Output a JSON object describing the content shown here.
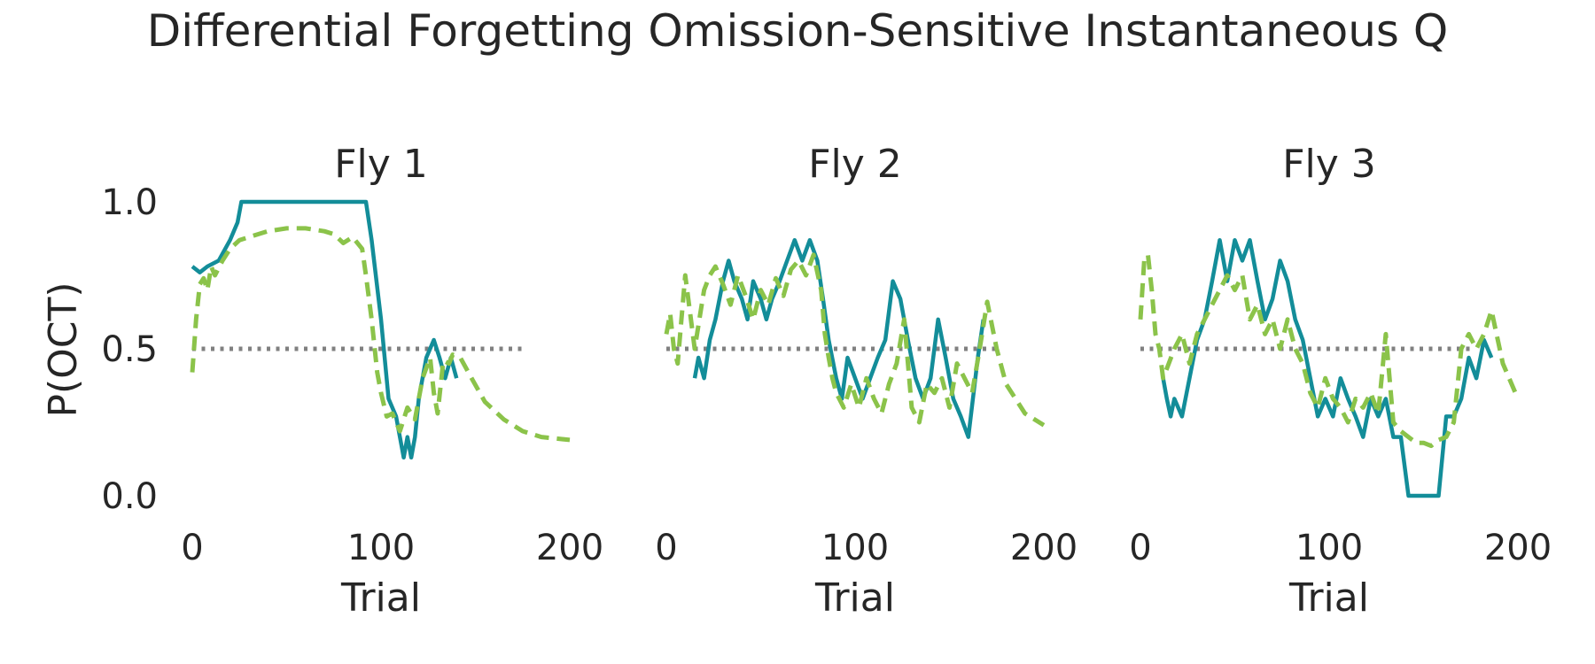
{
  "figure": {
    "suptitle": "Differential Forgetting Omission-Sensitive Instantaneous Q",
    "ylabel": "P(OCT)"
  },
  "colors": {
    "observed": "#138d99",
    "model": "#8bc34a",
    "chance": "#808080",
    "text": "#262626"
  },
  "chart_data": [
    {
      "type": "line",
      "title": "Fly 1",
      "xlabel": "Trial",
      "ylabel": "P(OCT)",
      "xlim": [
        0,
        200
      ],
      "ylim": [
        0,
        1
      ],
      "xticks": [
        "0",
        "100",
        "200"
      ],
      "yticks": [
        "0.0",
        "0.5",
        "1.0"
      ],
      "grid": false,
      "legend": "none",
      "reference_line": {
        "y": 0.5,
        "style": "dotted"
      },
      "series": [
        {
          "style": "solid",
          "x": [
            0,
            4,
            8,
            14,
            20,
            24,
            26,
            92,
            95,
            100,
            104,
            108,
            110,
            112,
            114,
            116,
            118,
            120,
            124,
            128,
            131,
            134,
            137,
            140
          ],
          "y": [
            0.78,
            0.76,
            0.78,
            0.8,
            0.87,
            0.93,
            1.0,
            1.0,
            0.87,
            0.6,
            0.33,
            0.27,
            0.2,
            0.13,
            0.2,
            0.13,
            0.2,
            0.33,
            0.47,
            0.53,
            0.47,
            0.4,
            0.47,
            0.4
          ]
        },
        {
          "style": "dashed",
          "x": [
            0,
            2,
            4,
            6,
            8,
            10,
            12,
            16,
            20,
            25,
            30,
            40,
            50,
            60,
            70,
            75,
            80,
            85,
            90,
            92,
            95,
            98,
            100,
            103,
            106,
            110,
            114,
            118,
            122,
            126,
            128,
            130,
            133,
            136,
            138,
            142,
            148,
            155,
            165,
            175,
            185,
            200
          ],
          "y": [
            0.42,
            0.6,
            0.72,
            0.74,
            0.7,
            0.78,
            0.75,
            0.8,
            0.84,
            0.87,
            0.88,
            0.9,
            0.91,
            0.91,
            0.9,
            0.89,
            0.86,
            0.88,
            0.84,
            0.75,
            0.6,
            0.42,
            0.35,
            0.27,
            0.28,
            0.22,
            0.3,
            0.26,
            0.4,
            0.47,
            0.35,
            0.28,
            0.46,
            0.45,
            0.48,
            0.47,
            0.4,
            0.32,
            0.26,
            0.22,
            0.2,
            0.19
          ]
        }
      ]
    },
    {
      "type": "line",
      "title": "Fly 2",
      "xlabel": "Trial",
      "xlim": [
        0,
        200
      ],
      "ylim": [
        0,
        1
      ],
      "xticks": [
        "0",
        "100",
        "200"
      ],
      "grid": false,
      "legend": "none",
      "reference_line": {
        "y": 0.5,
        "style": "dotted"
      },
      "series": [
        {
          "style": "solid",
          "x": [
            15,
            17,
            20,
            23,
            26,
            30,
            33,
            36,
            40,
            43,
            46,
            50,
            53,
            56,
            60,
            64,
            68,
            72,
            76,
            80,
            83,
            86,
            90,
            93,
            96,
            100,
            104,
            108,
            112,
            116,
            120,
            124,
            128,
            132,
            136,
            140,
            144,
            148,
            152,
            156,
            160,
            165,
            168
          ],
          "y": [
            0.4,
            0.47,
            0.4,
            0.53,
            0.6,
            0.73,
            0.8,
            0.73,
            0.67,
            0.6,
            0.73,
            0.67,
            0.6,
            0.67,
            0.73,
            0.8,
            0.87,
            0.8,
            0.87,
            0.8,
            0.67,
            0.53,
            0.4,
            0.33,
            0.47,
            0.4,
            0.33,
            0.4,
            0.47,
            0.53,
            0.73,
            0.67,
            0.53,
            0.4,
            0.33,
            0.4,
            0.6,
            0.47,
            0.33,
            0.27,
            0.2,
            0.47,
            0.6
          ]
        },
        {
          "style": "dashed",
          "x": [
            0,
            2,
            4,
            6,
            8,
            10,
            12,
            15,
            18,
            20,
            23,
            26,
            30,
            34,
            38,
            42,
            46,
            50,
            54,
            58,
            62,
            66,
            70,
            74,
            78,
            82,
            84,
            86,
            88,
            90,
            94,
            98,
            102,
            106,
            110,
            114,
            118,
            122,
            126,
            130,
            134,
            138,
            142,
            146,
            150,
            154,
            158,
            162,
            166,
            170,
            175,
            180,
            190,
            200
          ],
          "y": [
            0.55,
            0.62,
            0.5,
            0.45,
            0.6,
            0.75,
            0.65,
            0.5,
            0.62,
            0.7,
            0.75,
            0.78,
            0.72,
            0.65,
            0.75,
            0.68,
            0.6,
            0.7,
            0.65,
            0.74,
            0.68,
            0.77,
            0.8,
            0.75,
            0.82,
            0.7,
            0.55,
            0.47,
            0.4,
            0.35,
            0.3,
            0.38,
            0.3,
            0.4,
            0.33,
            0.28,
            0.38,
            0.45,
            0.6,
            0.3,
            0.25,
            0.38,
            0.35,
            0.4,
            0.3,
            0.45,
            0.4,
            0.35,
            0.5,
            0.66,
            0.5,
            0.38,
            0.28,
            0.24
          ]
        }
      ]
    },
    {
      "type": "line",
      "title": "Fly 3",
      "xlabel": "Trial",
      "xlim": [
        0,
        200
      ],
      "ylim": [
        0,
        1
      ],
      "xticks": [
        "0",
        "100",
        "200"
      ],
      "grid": false,
      "legend": "none",
      "reference_line": {
        "y": 0.5,
        "style": "dotted"
      },
      "series": [
        {
          "style": "solid",
          "x": [
            12,
            14,
            16,
            18,
            22,
            26,
            30,
            34,
            38,
            42,
            46,
            50,
            54,
            58,
            62,
            66,
            70,
            74,
            78,
            82,
            86,
            90,
            94,
            98,
            102,
            106,
            110,
            114,
            118,
            122,
            126,
            130,
            134,
            138,
            142,
            146,
            150,
            154,
            158,
            162,
            166,
            170,
            174,
            178,
            182,
            186
          ],
          "y": [
            0.4,
            0.33,
            0.27,
            0.33,
            0.27,
            0.4,
            0.53,
            0.6,
            0.73,
            0.87,
            0.73,
            0.87,
            0.8,
            0.87,
            0.73,
            0.6,
            0.67,
            0.8,
            0.73,
            0.6,
            0.53,
            0.4,
            0.27,
            0.33,
            0.27,
            0.4,
            0.33,
            0.27,
            0.2,
            0.33,
            0.27,
            0.33,
            0.2,
            0.2,
            0.0,
            0.0,
            0.0,
            0.0,
            0.0,
            0.27,
            0.27,
            0.33,
            0.47,
            0.4,
            0.53,
            0.47
          ]
        },
        {
          "style": "dashed",
          "x": [
            0,
            2,
            4,
            6,
            8,
            10,
            12,
            15,
            18,
            22,
            26,
            30,
            34,
            38,
            42,
            46,
            50,
            54,
            58,
            62,
            66,
            70,
            74,
            78,
            82,
            86,
            90,
            94,
            98,
            102,
            106,
            110,
            114,
            118,
            122,
            126,
            130,
            134,
            138,
            142,
            146,
            150,
            154,
            158,
            162,
            166,
            170,
            174,
            178,
            182,
            186,
            192,
            200
          ],
          "y": [
            0.6,
            0.8,
            0.82,
            0.7,
            0.55,
            0.5,
            0.4,
            0.45,
            0.5,
            0.55,
            0.45,
            0.55,
            0.6,
            0.65,
            0.7,
            0.75,
            0.7,
            0.75,
            0.6,
            0.65,
            0.55,
            0.6,
            0.5,
            0.6,
            0.5,
            0.45,
            0.35,
            0.3,
            0.4,
            0.33,
            0.3,
            0.25,
            0.33,
            0.3,
            0.35,
            0.28,
            0.55,
            0.25,
            0.22,
            0.2,
            0.18,
            0.18,
            0.17,
            0.19,
            0.2,
            0.25,
            0.5,
            0.55,
            0.5,
            0.55,
            0.63,
            0.45,
            0.33
          ]
        }
      ]
    }
  ]
}
